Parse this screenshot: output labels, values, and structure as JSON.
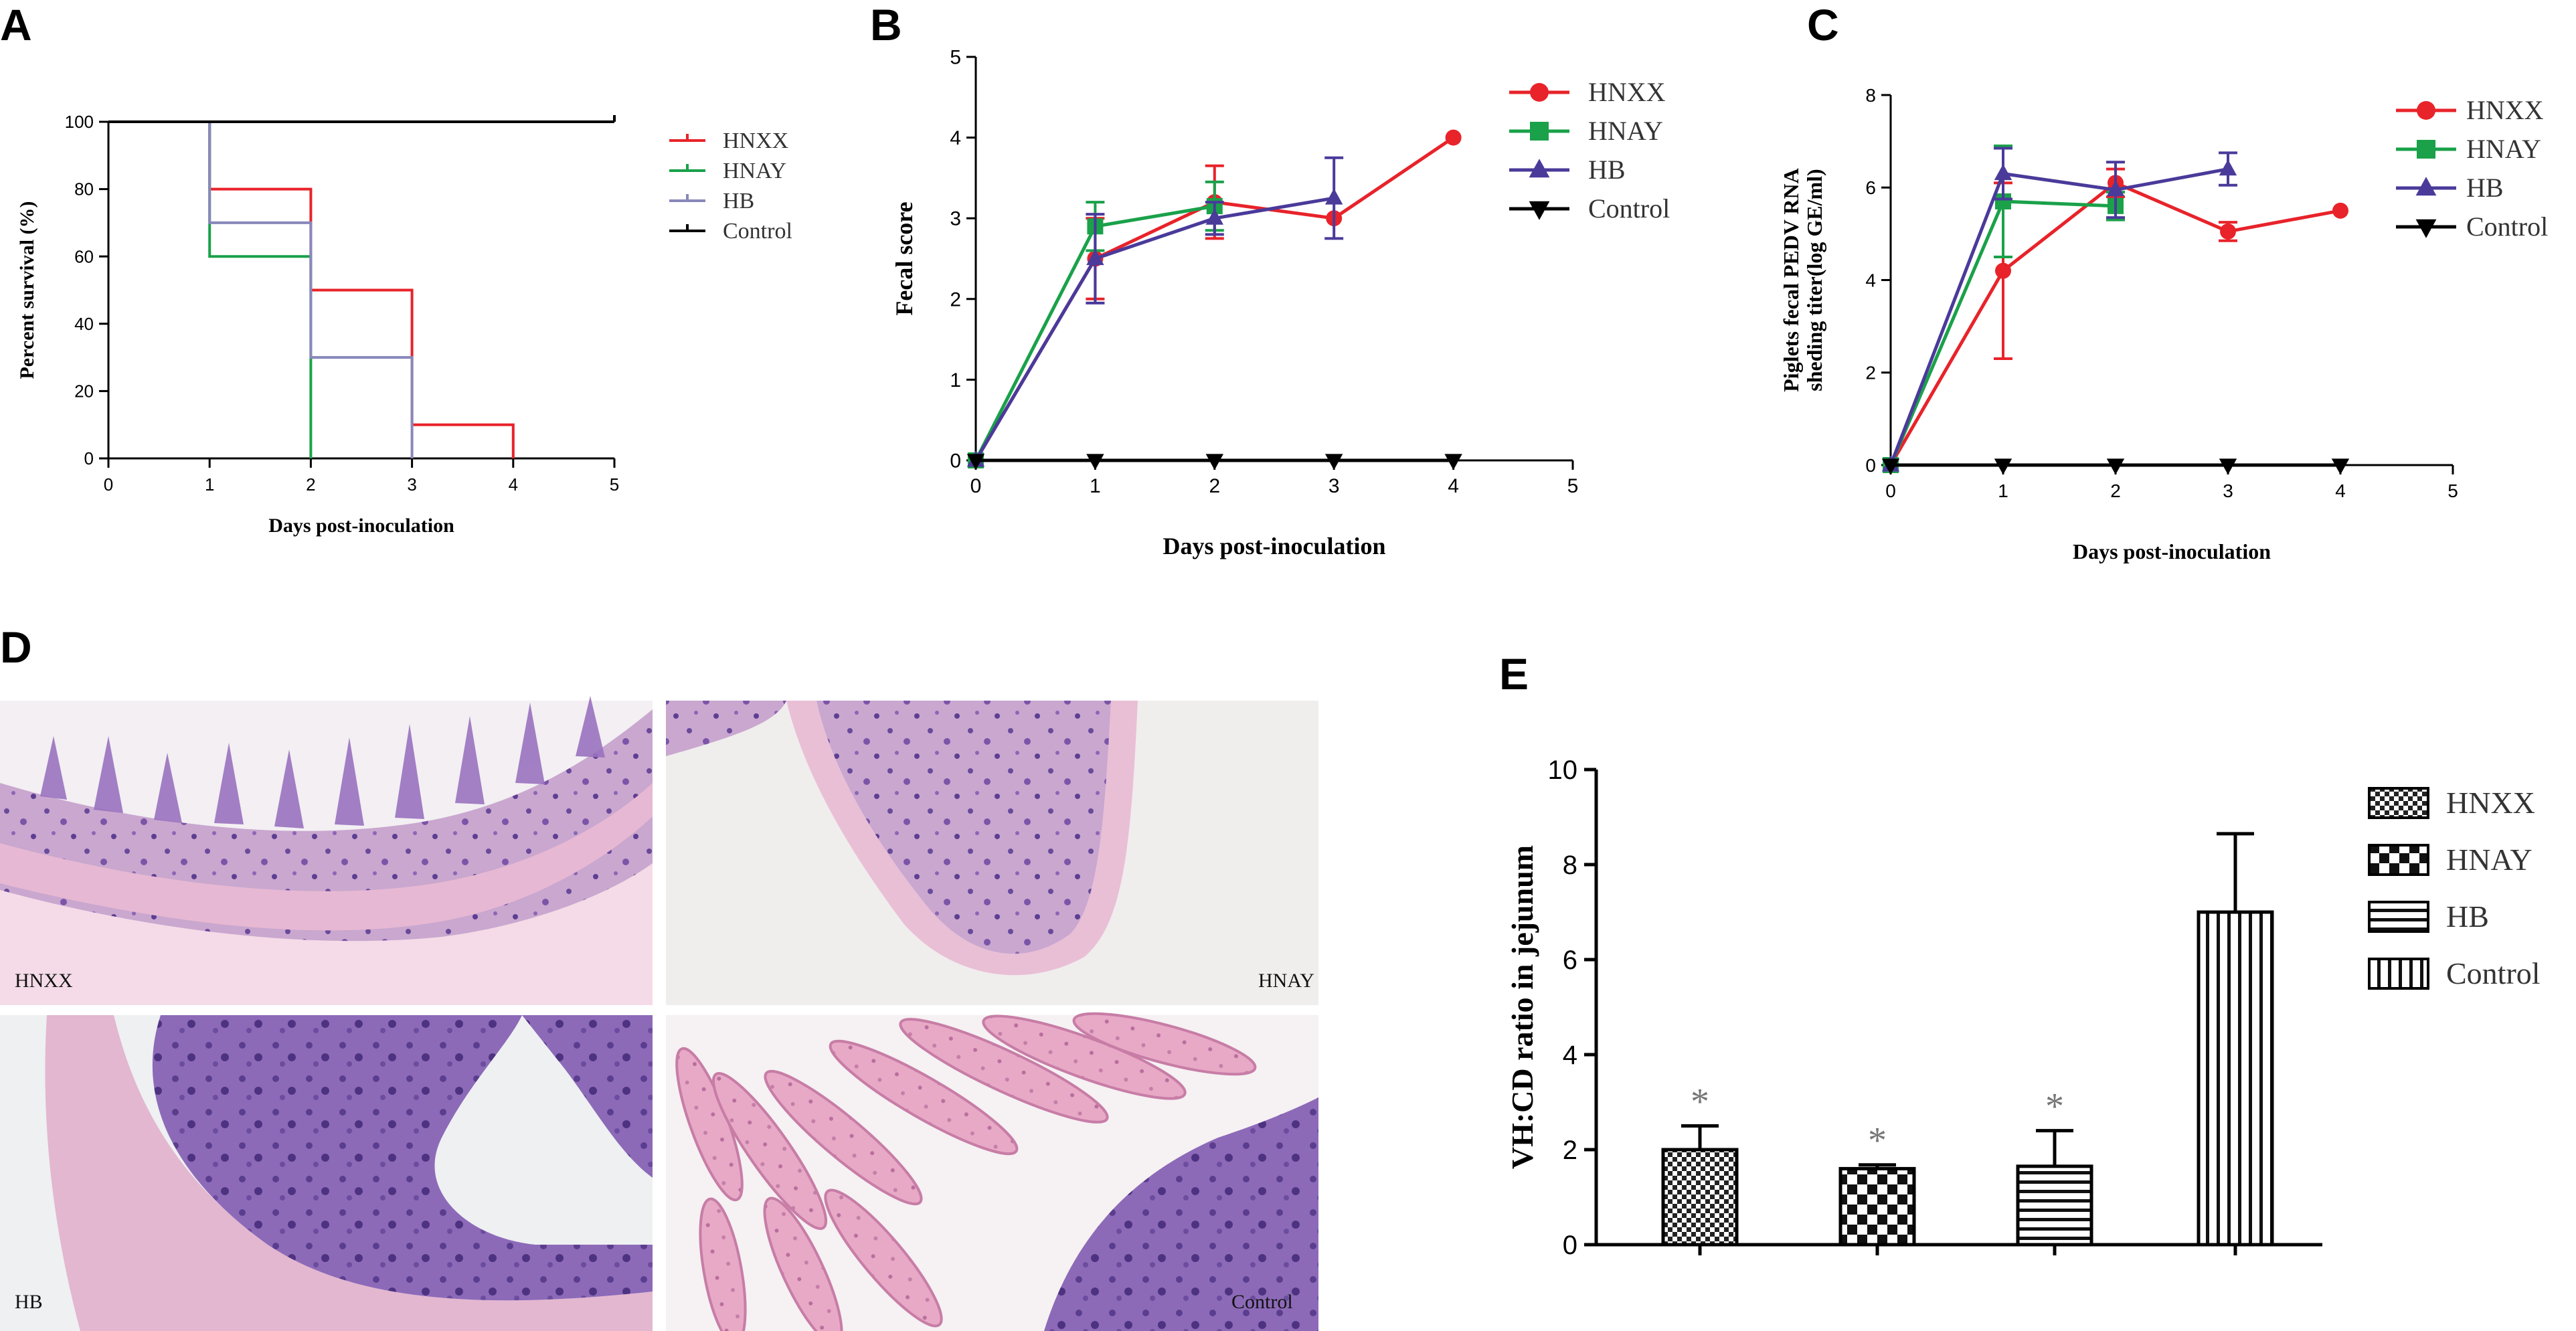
{
  "figure": {
    "panel_letters": [
      "A",
      "B",
      "C",
      "D",
      "E"
    ],
    "histology_labels": [
      "HNXX",
      "HNAY",
      "HB",
      "Control"
    ]
  },
  "colors": {
    "HNXX": "#e8232a",
    "HNAY": "#1aa14a",
    "HB": "#4a3a9a",
    "Control": "#000000",
    "survival_HB": "#8888bb"
  },
  "chart_data": [
    {
      "panel": "A",
      "type": "line",
      "subtype": "survival-step",
      "xlabel": "Days post-inoculation",
      "ylabel": "Percent survival (%)",
      "xlim": [
        0,
        5
      ],
      "ylim": [
        0,
        100
      ],
      "xticks": [
        0,
        1,
        2,
        3,
        4,
        5
      ],
      "yticks": [
        0,
        20,
        40,
        60,
        80,
        100
      ],
      "legend_position": "right",
      "series": [
        {
          "name": "HNXX",
          "color": "#e8232a",
          "steps": [
            [
              0,
              100
            ],
            [
              1,
              80
            ],
            [
              2,
              50
            ],
            [
              3,
              10
            ],
            [
              4,
              0
            ]
          ]
        },
        {
          "name": "HNAY",
          "color": "#1aa14a",
          "steps": [
            [
              0,
              100
            ],
            [
              1,
              60
            ],
            [
              2,
              0
            ]
          ]
        },
        {
          "name": "HB",
          "color": "#8888bb",
          "steps": [
            [
              0,
              100
            ],
            [
              1,
              70
            ],
            [
              2,
              30
            ],
            [
              3,
              0
            ]
          ]
        },
        {
          "name": "Control",
          "color": "#000000",
          "steps": [
            [
              0,
              100
            ],
            [
              5,
              100
            ]
          ]
        }
      ]
    },
    {
      "panel": "B",
      "type": "line",
      "xlabel": "Days post-inoculation",
      "ylabel": "Fecal score",
      "xlim": [
        0,
        5
      ],
      "ylim": [
        0,
        5
      ],
      "xticks": [
        0,
        1,
        2,
        3,
        4,
        5
      ],
      "yticks": [
        0,
        1,
        2,
        3,
        4,
        5
      ],
      "legend_position": "right",
      "series": [
        {
          "name": "HNXX",
          "color": "#e8232a",
          "marker": "circle",
          "x": [
            0,
            1,
            2,
            3,
            4
          ],
          "y": [
            0,
            2.5,
            3.2,
            3.0,
            4.0
          ],
          "err": [
            0,
            0.5,
            0.45,
            0,
            0
          ]
        },
        {
          "name": "HNAY",
          "color": "#1aa14a",
          "marker": "square",
          "x": [
            0,
            1,
            2
          ],
          "y": [
            0,
            2.9,
            3.15
          ],
          "err": [
            0,
            0.3,
            0.3
          ]
        },
        {
          "name": "HB",
          "color": "#4a3a9a",
          "marker": "triangle-up",
          "x": [
            0,
            1,
            2,
            3
          ],
          "y": [
            0,
            2.5,
            3.0,
            3.25
          ],
          "err": [
            0,
            0.55,
            0.2,
            0.5
          ]
        },
        {
          "name": "Control",
          "color": "#000000",
          "marker": "triangle-down",
          "x": [
            0,
            1,
            2,
            3,
            4
          ],
          "y": [
            0,
            0,
            0,
            0,
            0
          ],
          "err": [
            0,
            0,
            0,
            0,
            0
          ]
        }
      ]
    },
    {
      "panel": "C",
      "type": "line",
      "xlabel": "Days post-inoculation",
      "ylabel_lines": [
        "Piglets fecal PEDV RNA",
        "sheding titer(log GE/ml)"
      ],
      "xlim": [
        0,
        5
      ],
      "ylim": [
        0,
        8
      ],
      "xticks": [
        0,
        1,
        2,
        3,
        4,
        5
      ],
      "yticks": [
        0,
        2,
        4,
        6,
        8
      ],
      "legend_position": "right",
      "series": [
        {
          "name": "HNXX",
          "color": "#e8232a",
          "marker": "circle",
          "x": [
            0,
            1,
            2,
            3,
            4
          ],
          "y": [
            0,
            4.2,
            6.1,
            5.05,
            5.5
          ],
          "err": [
            0,
            1.9,
            0.3,
            0.2,
            0
          ]
        },
        {
          "name": "HNAY",
          "color": "#1aa14a",
          "marker": "square",
          "x": [
            0,
            1,
            2
          ],
          "y": [
            0,
            5.7,
            5.6
          ],
          "err": [
            0,
            1.2,
            0.3
          ]
        },
        {
          "name": "HB",
          "color": "#4a3a9a",
          "marker": "triangle-up",
          "x": [
            0,
            1,
            2,
            3
          ],
          "y": [
            0,
            6.3,
            5.95,
            6.4
          ],
          "err": [
            0,
            0.55,
            0.6,
            0.35
          ]
        },
        {
          "name": "Control",
          "color": "#000000",
          "marker": "triangle-down",
          "x": [
            0,
            1,
            2,
            3,
            4
          ],
          "y": [
            0,
            0,
            0,
            0,
            0
          ],
          "err": [
            0,
            0,
            0,
            0,
            0
          ]
        }
      ]
    },
    {
      "panel": "E",
      "type": "bar",
      "ylabel": "VH:CD ratio in jejunum",
      "ylim": [
        0,
        10
      ],
      "yticks": [
        0,
        2,
        4,
        6,
        8,
        10
      ],
      "legend_position": "right",
      "categories": [
        "HNXX",
        "HNAY",
        "HB",
        "Control"
      ],
      "values": [
        2.0,
        1.6,
        1.65,
        7.0
      ],
      "err": [
        0.5,
        0.08,
        0.75,
        1.65
      ],
      "patterns": [
        "checker-fine",
        "checker-coarse",
        "horizontal-lines",
        "vertical-lines"
      ],
      "significance": [
        "*",
        "*",
        "*",
        ""
      ]
    }
  ]
}
